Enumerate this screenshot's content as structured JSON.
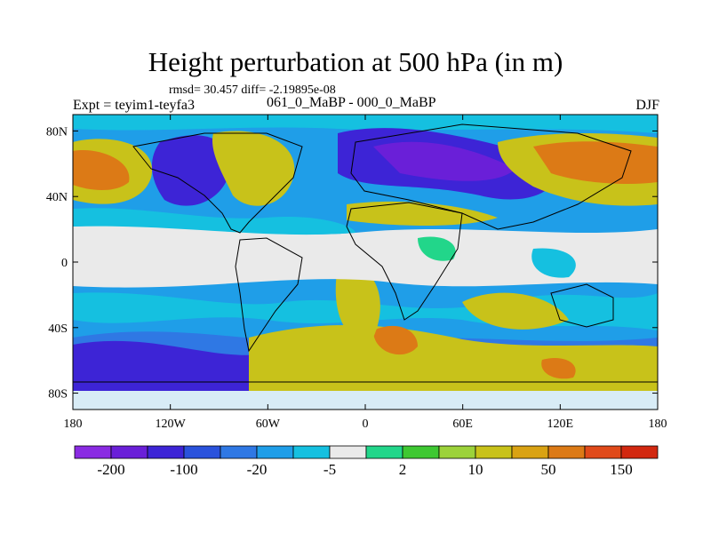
{
  "title": "Height perturbation at 500 hPa (in m)",
  "subtitle_stats": "rmsd= 30.457 diff= -2.19895e-08",
  "experiment": "Expt = teyim1-teyfa3",
  "period": "061_0_MaBP - 000_0_MaBP",
  "season": "DJF",
  "map": {
    "projection": "cylindrical-equidistant",
    "lon_range": [
      -180,
      180
    ],
    "lat_range": [
      -90,
      90
    ],
    "x_ticks": [
      {
        "lon": -180,
        "label": "180"
      },
      {
        "lon": -120,
        "label": "120W"
      },
      {
        "lon": -60,
        "label": "60W"
      },
      {
        "lon": 0,
        "label": "0"
      },
      {
        "lon": 60,
        "label": "60E"
      },
      {
        "lon": 120,
        "label": "120E"
      },
      {
        "lon": 180,
        "label": "180"
      }
    ],
    "y_ticks": [
      {
        "lat": 80,
        "label": "80N"
      },
      {
        "lat": 40,
        "label": "40N"
      },
      {
        "lat": 0,
        "label": "0"
      },
      {
        "lat": -40,
        "label": "40S"
      },
      {
        "lat": -80,
        "label": "80S"
      }
    ]
  },
  "colorbar": {
    "colors": [
      "#8a2be2",
      "#6a1fd8",
      "#3d24d6",
      "#2a52dc",
      "#2f78e4",
      "#1f9ee8",
      "#15c0e0",
      "#eaeaea",
      "#22d68a",
      "#3ec832",
      "#9cd23a",
      "#c8c21a",
      "#d9a213",
      "#dc7a16",
      "#e04a1a",
      "#d22810"
    ],
    "labels": [
      "-200",
      "-100",
      "-20",
      "-5",
      "2",
      "10",
      "50",
      "150"
    ]
  }
}
